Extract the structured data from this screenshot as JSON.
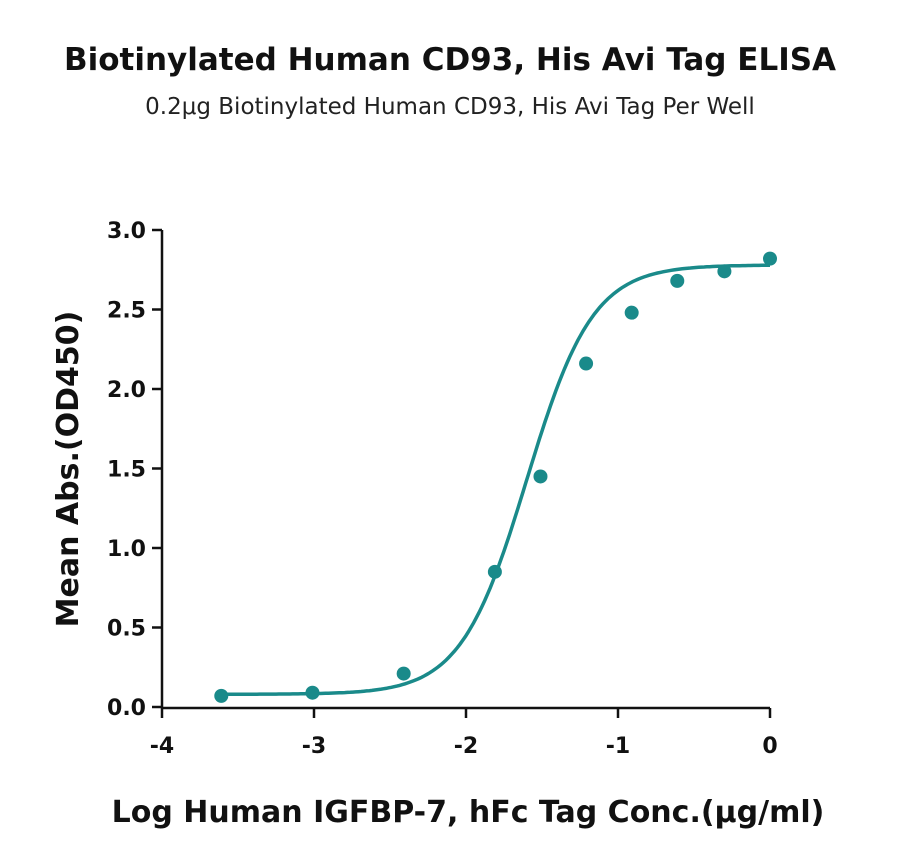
{
  "chart_data": {
    "type": "scatter",
    "title": "Biotinylated Human CD93, His Avi Tag ELISA",
    "subtitle": "0.2μg Biotinylated Human CD93, His Avi Tag Per Well",
    "xlabel": "Log Human IGFBP-7, hFc Tag Conc.(μg/ml)",
    "ylabel": "Mean Abs.(OD450)",
    "xlim": [
      -4,
      0
    ],
    "ylim": [
      0,
      3.0
    ],
    "xticks": [
      -4,
      -3,
      -2,
      -1,
      0
    ],
    "xtick_labels": [
      "-4",
      "-3",
      "-2",
      "-1",
      "0"
    ],
    "yticks": [
      0,
      0.5,
      1.0,
      1.5,
      2.0,
      2.5,
      3.0
    ],
    "ytick_labels": [
      "0.0",
      "0.5",
      "1.0",
      "1.5",
      "2.0",
      "2.5",
      "3.0"
    ],
    "grid": false,
    "series": [
      {
        "x": [
          -3.61,
          -3.01,
          -2.41,
          -1.81,
          -1.51,
          -1.21,
          -0.91,
          -0.61,
          -0.3,
          0.0
        ],
        "y": [
          0.07,
          0.09,
          0.21,
          0.85,
          1.45,
          2.16,
          2.48,
          2.68,
          2.74,
          2.82
        ],
        "fit": "4PL"
      }
    ],
    "color": "#1a8a8a"
  }
}
